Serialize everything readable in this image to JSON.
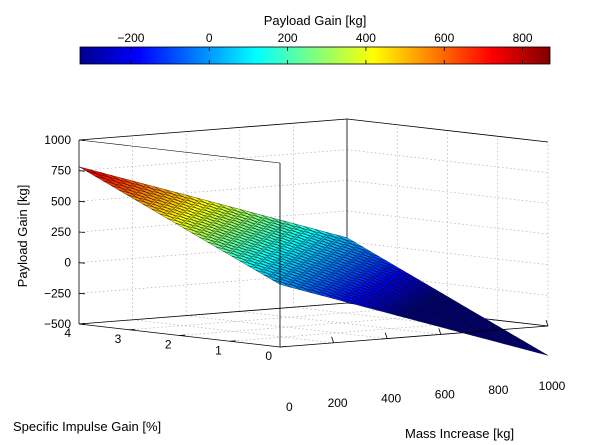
{
  "chart_data": {
    "type": "surface",
    "title": "",
    "xlabel": "Mass Increase [kg]",
    "ylabel": "Specific Impulse Gain [%]",
    "zlabel": "Payload Gain [kg]",
    "colorbar_label": "Payload Gain [kg]",
    "colormap": "jet",
    "clim": [
      -330,
      870
    ],
    "xlim": [
      0,
      1000
    ],
    "ylim": [
      0,
      4
    ],
    "zlim": [
      -500,
      1000
    ],
    "xticks": [
      "200",
      "400",
      "600",
      "800",
      "1000"
    ],
    "xtick_values": [
      200,
      400,
      600,
      800,
      1000
    ],
    "yticks": [
      "0",
      "1",
      "2",
      "3",
      "4"
    ],
    "ytick_values": [
      0,
      1,
      2,
      3,
      4
    ],
    "zticks": [
      "−500",
      "−250",
      "0",
      "250",
      "500",
      "750",
      "1000"
    ],
    "ztick_values": [
      -500,
      -250,
      0,
      250,
      500,
      750,
      1000
    ],
    "colorbar_ticks": [
      "−200",
      "0",
      "200",
      "400",
      "600",
      "800"
    ],
    "colorbar_tick_values": [
      -200,
      0,
      200,
      400,
      600,
      800
    ],
    "x_origin_label": "0",
    "surface": {
      "description_formula": "z = a + b*x + c*y",
      "a": 10,
      "b": -0.75,
      "c": 193,
      "x_grid": [
        0,
        1000
      ],
      "y_grid": [
        0,
        4
      ],
      "grid_lines_x": 25,
      "grid_lines_y": 25
    },
    "corner_values": [
      {
        "x": 0,
        "y": 0,
        "z": 10
      },
      {
        "x": 1000,
        "y": 0,
        "z": -740
      },
      {
        "x": 0,
        "y": 4,
        "z": 780
      },
      {
        "x": 1000,
        "y": 4,
        "z": 30
      }
    ],
    "grid": true
  }
}
